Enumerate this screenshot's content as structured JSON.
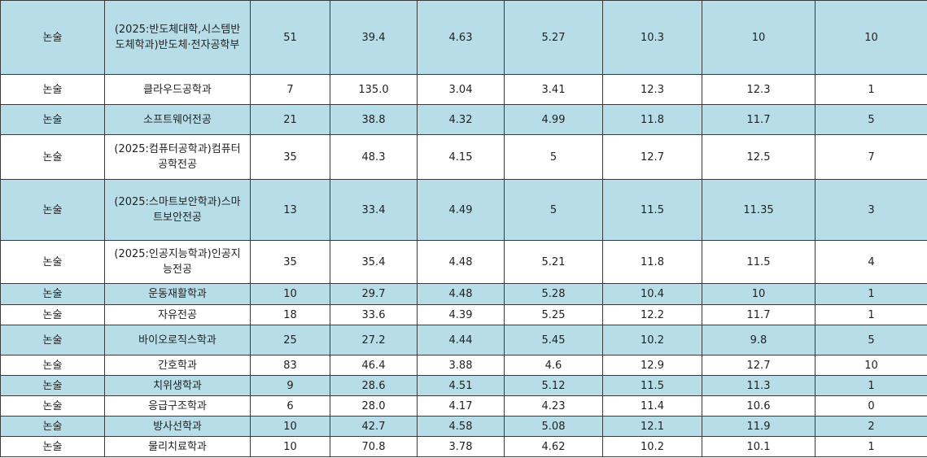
{
  "table": {
    "rows": [
      [
        "논술",
        "(2025:반도체대학,시스템반도체학과)반도체·전자공학부",
        "51",
        "39.4",
        "4.63",
        "5.27",
        "10.3",
        "10",
        "10"
      ],
      [
        "논술",
        "클라우드공학과",
        "7",
        "135.0",
        "3.04",
        "3.41",
        "12.3",
        "12.3",
        "1"
      ],
      [
        "논술",
        "소프트웨어전공",
        "21",
        "38.8",
        "4.32",
        "4.99",
        "11.8",
        "11.7",
        "5"
      ],
      [
        "논술",
        "(2025:컴퓨터공학과)컴퓨터공학전공",
        "35",
        "48.3",
        "4.15",
        "5",
        "12.7",
        "12.5",
        "7"
      ],
      [
        "논술",
        "(2025:스마트보안학과)스마트보안전공",
        "13",
        "33.4",
        "4.49",
        "5",
        "11.5",
        "11.35",
        "3"
      ],
      [
        "논술",
        "(2025:인공지능학과)인공지능전공",
        "35",
        "35.4",
        "4.48",
        "5.21",
        "11.8",
        "11.5",
        "4"
      ],
      [
        "논술",
        "운동재활학과",
        "10",
        "29.7",
        "4.48",
        "5.28",
        "10.4",
        "10",
        "1"
      ],
      [
        "논술",
        "자유전공",
        "18",
        "33.6",
        "4.39",
        "5.25",
        "12.2",
        "11.7",
        "1"
      ],
      [
        "논술",
        "바이오로직스학과",
        "25",
        "27.2",
        "4.44",
        "5.45",
        "10.2",
        "9.8",
        "5"
      ],
      [
        "논술",
        "간호학과",
        "83",
        "46.4",
        "3.88",
        "4.6",
        "12.9",
        "12.7",
        "10"
      ],
      [
        "논술",
        "치위생학과",
        "9",
        "28.6",
        "4.51",
        "5.12",
        "11.5",
        "11.3",
        "1"
      ],
      [
        "논술",
        "응급구조학과",
        "6",
        "28.0",
        "4.17",
        "4.23",
        "11.4",
        "10.6",
        "0"
      ],
      [
        "논술",
        "방사선학과",
        "10",
        "42.7",
        "4.58",
        "5.08",
        "12.1",
        "11.9",
        "2"
      ],
      [
        "논술",
        "물리치료학과",
        "10",
        "70.8",
        "3.78",
        "4.62",
        "10.2",
        "10.1",
        "1"
      ]
    ]
  }
}
